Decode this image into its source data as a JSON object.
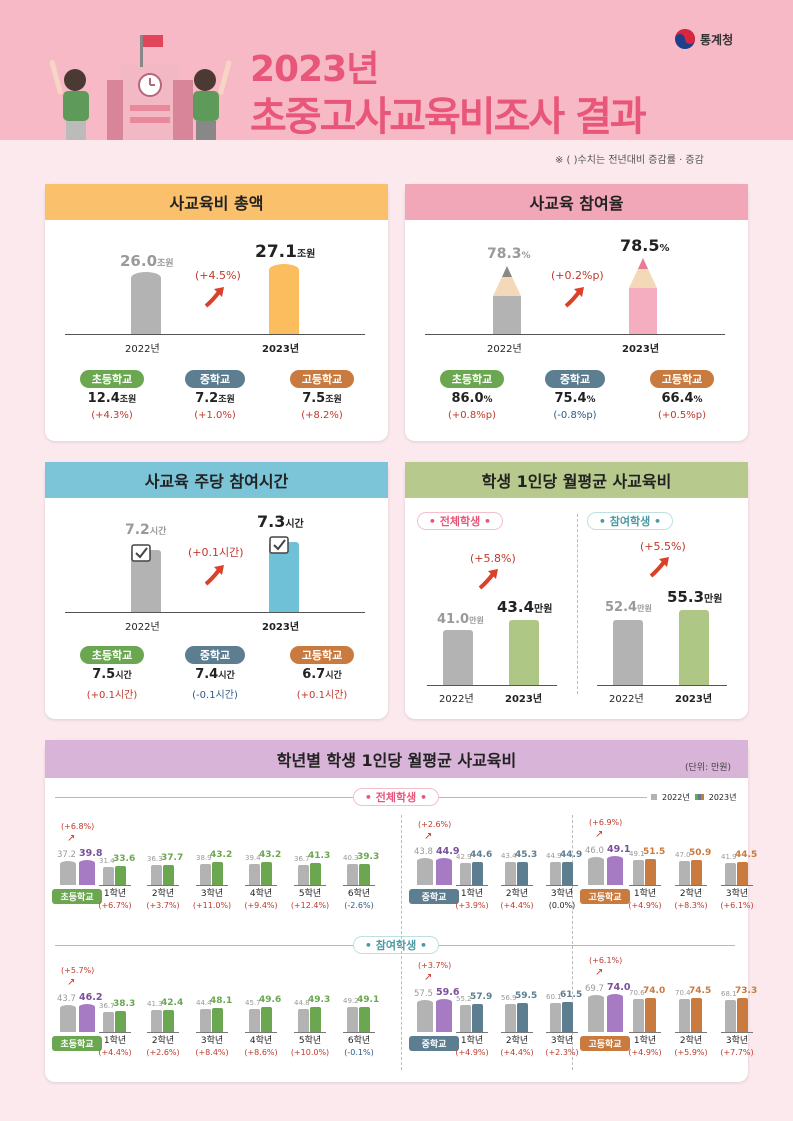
{
  "header": {
    "year_title": "2023년",
    "main_title": "초중고사교육비조사 결과",
    "agency": "통계청",
    "note": "※ (    )수치는 전년대비 증감률 · 증감"
  },
  "total": {
    "title": "사교육비 총액",
    "prev": {
      "value": "26.0",
      "unit": "조원",
      "year": "2022년"
    },
    "curr": {
      "value": "27.1",
      "unit": "조원",
      "year": "2023년"
    },
    "change": "(+4.5%)",
    "schools": [
      {
        "name": "초등학교",
        "value": "12.4",
        "unit": "조원",
        "change": "(+4.3%)"
      },
      {
        "name": "중학교",
        "value": "7.2",
        "unit": "조원",
        "change": "(+1.0%)"
      },
      {
        "name": "고등학교",
        "value": "7.5",
        "unit": "조원",
        "change": "(+8.2%)"
      }
    ]
  },
  "participation": {
    "title": "사교육 참여율",
    "prev": {
      "value": "78.3",
      "unit": "%",
      "year": "2022년"
    },
    "curr": {
      "value": "78.5",
      "unit": "%",
      "year": "2023년"
    },
    "change": "(+0.2%p)",
    "schools": [
      {
        "name": "초등학교",
        "value": "86.0",
        "unit": "%",
        "change": "(+0.8%p)"
      },
      {
        "name": "중학교",
        "value": "75.4",
        "unit": "%",
        "change": "(-0.8%p)"
      },
      {
        "name": "고등학교",
        "value": "66.4",
        "unit": "%",
        "change": "(+0.5%p)"
      }
    ]
  },
  "hours": {
    "title": "사교육 주당 참여시간",
    "prev": {
      "value": "7.2",
      "unit": "시간",
      "year": "2022년"
    },
    "curr": {
      "value": "7.3",
      "unit": "시간",
      "year": "2023년"
    },
    "change": "(+0.1시간)",
    "schools": [
      {
        "name": "초등학교",
        "value": "7.5",
        "unit": "시간",
        "change": "(+0.1시간)"
      },
      {
        "name": "중학교",
        "value": "7.4",
        "unit": "시간",
        "change": "(-0.1시간)"
      },
      {
        "name": "고등학교",
        "value": "6.7",
        "unit": "시간",
        "change": "(+0.1시간)"
      }
    ]
  },
  "monthly": {
    "title": "학생 1인당 월평균 사교육비",
    "all": {
      "label": "• 전체학생 •",
      "prev": {
        "value": "41.0",
        "unit": "만원",
        "year": "2022년"
      },
      "curr": {
        "value": "43.4",
        "unit": "만원",
        "year": "2023년"
      },
      "change": "(+5.8%)"
    },
    "part": {
      "label": "• 참여학생 •",
      "prev": {
        "value": "52.4",
        "unit": "만원",
        "year": "2022년"
      },
      "curr": {
        "value": "55.3",
        "unit": "만원",
        "year": "2023년"
      },
      "change": "(+5.5%)"
    }
  },
  "grades": {
    "title": "학년별 학생 1인당 월평균 사교육비",
    "unit": "(단위: 만원)",
    "legend": [
      "2022년",
      "2023년"
    ],
    "sec_all": "• 전체학생 •",
    "sec_part": "• 참여학생 •"
  },
  "colors": {
    "elem": "#6aa750",
    "mid": "#5d7e91",
    "high": "#c97a3f",
    "grey": "#b3b3b3",
    "purple": "#a77bc4"
  },
  "chart_data": [
    {
      "type": "bar",
      "title": "전체학생",
      "groups": [
        {
          "school": "초등학교",
          "total": {
            "v2022": 37.2,
            "v2023": 39.8,
            "change": "(+6.8%)"
          },
          "grades": [
            [
              "1학년",
              31.4,
              33.6,
              "(+6.7%)"
            ],
            [
              "2학년",
              36.3,
              37.7,
              "(+3.7%)"
            ],
            [
              "3학년",
              38.9,
              43.2,
              "(+11.0%)"
            ],
            [
              "4학년",
              39.4,
              43.2,
              "(+9.4%)"
            ],
            [
              "5학년",
              36.7,
              41.3,
              "(+12.4%)"
            ],
            [
              "6학년",
              40.3,
              39.3,
              "(-2.6%)"
            ]
          ]
        },
        {
          "school": "중학교",
          "total": {
            "v2022": 43.8,
            "v2023": 44.9,
            "change": "(+2.6%)"
          },
          "grades": [
            [
              "1학년",
              42.9,
              44.6,
              "(+3.9%)"
            ],
            [
              "2학년",
              43.4,
              45.3,
              "(+4.4%)"
            ],
            [
              "3학년",
              44.9,
              44.9,
              "(0.0%)"
            ]
          ]
        },
        {
          "school": "고등학교",
          "total": {
            "v2022": 46.0,
            "v2023": 49.1,
            "change": "(+6.9%)"
          },
          "grades": [
            [
              "1학년",
              49.1,
              51.5,
              "(+4.9%)"
            ],
            [
              "2학년",
              47.0,
              50.9,
              "(+8.3%)"
            ],
            [
              "3학년",
              41.9,
              44.5,
              "(+6.1%)"
            ]
          ]
        }
      ]
    },
    {
      "type": "bar",
      "title": "참여학생",
      "groups": [
        {
          "school": "초등학교",
          "total": {
            "v2022": 43.7,
            "v2023": 46.2,
            "change": "(+5.7%)"
          },
          "grades": [
            [
              "1학년",
              36.7,
              38.3,
              "(+4.4%)"
            ],
            [
              "2학년",
              41.3,
              42.4,
              "(+2.6%)"
            ],
            [
              "3학년",
              44.4,
              48.1,
              "(+8.4%)"
            ],
            [
              "4학년",
              45.7,
              49.6,
              "(+8.6%)"
            ],
            [
              "5학년",
              44.8,
              49.3,
              "(+10.0%)"
            ],
            [
              "6학년",
              49.2,
              49.1,
              "(-0.1%)"
            ]
          ]
        },
        {
          "school": "중학교",
          "total": {
            "v2022": 57.5,
            "v2023": 59.6,
            "change": "(+3.7%)"
          },
          "grades": [
            [
              "1학년",
              55.2,
              57.9,
              "(+4.9%)"
            ],
            [
              "2학년",
              56.9,
              59.5,
              "(+4.4%)"
            ],
            [
              "3학년",
              60.1,
              61.5,
              "(+2.3%)"
            ]
          ]
        },
        {
          "school": "고등학교",
          "total": {
            "v2022": 69.7,
            "v2023": 74.0,
            "change": "(+6.1%)"
          },
          "grades": [
            [
              "1학년",
              70.6,
              74.0,
              "(+4.9%)"
            ],
            [
              "2학년",
              70.4,
              74.5,
              "(+5.9%)"
            ],
            [
              "3학년",
              68.1,
              73.3,
              "(+7.7%)"
            ]
          ]
        }
      ]
    }
  ]
}
